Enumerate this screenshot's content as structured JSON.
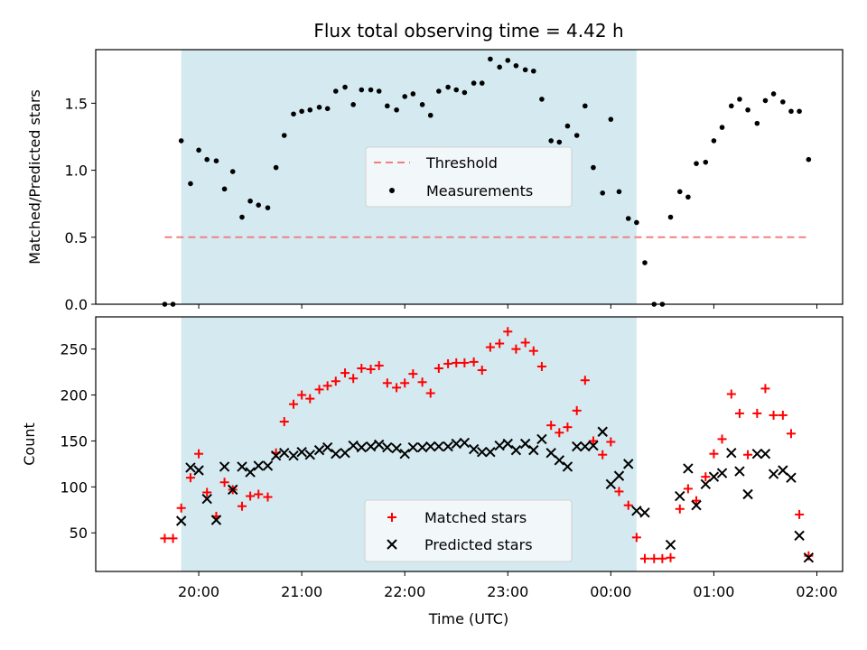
{
  "chart_data": [
    {
      "type": "scatter",
      "title": "Flux total observing time = 4.42 h",
      "ylabel": "Matched/Predicted stars",
      "ylim": [
        0,
        1.9
      ],
      "yticks": [
        0.0,
        0.5,
        1.0,
        1.5
      ],
      "ytick_labels": [
        "0.0",
        "0.5",
        "1.0",
        "1.5"
      ],
      "shaded_span": {
        "start": 19.83,
        "end": 24.25,
        "color": "#d4eaf0"
      },
      "threshold": {
        "name": "Threshold",
        "value": 0.5,
        "x_start": 19.67,
        "x_end": 25.92,
        "color": "#f08080"
      },
      "series": [
        {
          "name": "Measurements",
          "color": "#000000",
          "marker": "dot",
          "points": [
            [
              19.67,
              0.0
            ],
            [
              19.75,
              0.0
            ],
            [
              19.83,
              1.22
            ],
            [
              19.92,
              0.9
            ],
            [
              20.0,
              1.15
            ],
            [
              20.08,
              1.08
            ],
            [
              20.17,
              1.07
            ],
            [
              20.25,
              0.86
            ],
            [
              20.33,
              0.99
            ],
            [
              20.42,
              0.65
            ],
            [
              20.5,
              0.77
            ],
            [
              20.58,
              0.74
            ],
            [
              20.67,
              0.72
            ],
            [
              20.75,
              1.02
            ],
            [
              20.83,
              1.26
            ],
            [
              20.92,
              1.42
            ],
            [
              21.0,
              1.44
            ],
            [
              21.08,
              1.45
            ],
            [
              21.17,
              1.47
            ],
            [
              21.25,
              1.46
            ],
            [
              21.33,
              1.59
            ],
            [
              21.42,
              1.62
            ],
            [
              21.5,
              1.49
            ],
            [
              21.58,
              1.6
            ],
            [
              21.67,
              1.6
            ],
            [
              21.75,
              1.59
            ],
            [
              21.83,
              1.48
            ],
            [
              21.92,
              1.45
            ],
            [
              22.0,
              1.55
            ],
            [
              22.08,
              1.57
            ],
            [
              22.17,
              1.49
            ],
            [
              22.25,
              1.41
            ],
            [
              22.33,
              1.59
            ],
            [
              22.42,
              1.62
            ],
            [
              22.5,
              1.6
            ],
            [
              22.58,
              1.58
            ],
            [
              22.67,
              1.65
            ],
            [
              22.75,
              1.65
            ],
            [
              22.83,
              1.83
            ],
            [
              22.92,
              1.77
            ],
            [
              23.0,
              1.82
            ],
            [
              23.08,
              1.78
            ],
            [
              23.17,
              1.75
            ],
            [
              23.25,
              1.74
            ],
            [
              23.33,
              1.53
            ],
            [
              23.42,
              1.22
            ],
            [
              23.5,
              1.21
            ],
            [
              23.58,
              1.33
            ],
            [
              23.67,
              1.26
            ],
            [
              23.75,
              1.48
            ],
            [
              23.83,
              1.02
            ],
            [
              23.92,
              0.83
            ],
            [
              24.0,
              1.38
            ],
            [
              24.08,
              0.84
            ],
            [
              24.17,
              0.64
            ],
            [
              24.25,
              0.61
            ],
            [
              24.33,
              0.31
            ],
            [
              24.42,
              0.0
            ],
            [
              24.5,
              0.0
            ],
            [
              24.58,
              0.65
            ],
            [
              24.67,
              0.84
            ],
            [
              24.75,
              0.8
            ],
            [
              24.83,
              1.05
            ],
            [
              24.92,
              1.06
            ],
            [
              25.0,
              1.22
            ],
            [
              25.08,
              1.32
            ],
            [
              25.17,
              1.48
            ],
            [
              25.25,
              1.53
            ],
            [
              25.33,
              1.45
            ],
            [
              25.42,
              1.35
            ],
            [
              25.5,
              1.52
            ],
            [
              25.58,
              1.57
            ],
            [
              25.67,
              1.51
            ],
            [
              25.75,
              1.44
            ],
            [
              25.83,
              1.44
            ],
            [
              25.92,
              1.08
            ]
          ]
        }
      ],
      "legend": {
        "position": "center-right",
        "entries": [
          "Threshold",
          "Measurements"
        ]
      }
    },
    {
      "type": "scatter",
      "xlabel": "Time (UTC)",
      "ylabel": "Count",
      "ylim": [
        8,
        285
      ],
      "xlim": [
        19.0,
        26.25
      ],
      "xticks": [
        20,
        21,
        22,
        23,
        24,
        25,
        26
      ],
      "xtick_labels": [
        "20:00",
        "21:00",
        "22:00",
        "23:00",
        "00:00",
        "01:00",
        "02:00"
      ],
      "yticks": [
        50,
        100,
        150,
        200,
        250
      ],
      "ytick_labels": [
        "50",
        "100",
        "150",
        "200",
        "250"
      ],
      "shaded_span": {
        "start": 19.83,
        "end": 24.25,
        "color": "#d4eaf0"
      },
      "series": [
        {
          "name": "Matched stars",
          "color": "#ff0000",
          "marker": "plus",
          "points": [
            [
              19.67,
              44
            ],
            [
              19.75,
              44
            ],
            [
              19.83,
              77
            ],
            [
              19.92,
              110
            ],
            [
              20.0,
              136
            ],
            [
              20.08,
              94
            ],
            [
              20.17,
              68
            ],
            [
              20.25,
              105
            ],
            [
              20.33,
              97
            ],
            [
              20.42,
              79
            ],
            [
              20.5,
              90
            ],
            [
              20.58,
              92
            ],
            [
              20.67,
              89
            ],
            [
              20.75,
              137
            ],
            [
              20.83,
              171
            ],
            [
              20.92,
              190
            ],
            [
              21.0,
              200
            ],
            [
              21.08,
              196
            ],
            [
              21.17,
              206
            ],
            [
              21.25,
              210
            ],
            [
              21.33,
              215
            ],
            [
              21.42,
              224
            ],
            [
              21.5,
              218
            ],
            [
              21.58,
              229
            ],
            [
              21.67,
              228
            ],
            [
              21.75,
              232
            ],
            [
              21.83,
              213
            ],
            [
              21.92,
              208
            ],
            [
              22.0,
              213
            ],
            [
              22.08,
              223
            ],
            [
              22.17,
              214
            ],
            [
              22.25,
              202
            ],
            [
              22.33,
              229
            ],
            [
              22.42,
              234
            ],
            [
              22.5,
              235
            ],
            [
              22.58,
              235
            ],
            [
              22.67,
              236
            ],
            [
              22.75,
              227
            ],
            [
              22.83,
              252
            ],
            [
              22.92,
              256
            ],
            [
              23.0,
              269
            ],
            [
              23.08,
              250
            ],
            [
              23.17,
              257
            ],
            [
              23.25,
              248
            ],
            [
              23.33,
              231
            ],
            [
              23.42,
              167
            ],
            [
              23.5,
              159
            ],
            [
              23.58,
              165
            ],
            [
              23.67,
              183
            ],
            [
              23.75,
              216
            ],
            [
              23.83,
              150
            ],
            [
              23.92,
              135
            ],
            [
              24.0,
              149
            ],
            [
              24.08,
              95
            ],
            [
              24.17,
              80
            ],
            [
              24.25,
              45
            ],
            [
              24.33,
              22
            ],
            [
              24.42,
              22
            ],
            [
              24.5,
              22
            ],
            [
              24.58,
              23
            ],
            [
              24.67,
              76
            ],
            [
              24.75,
              98
            ],
            [
              24.83,
              85
            ],
            [
              24.92,
              111
            ],
            [
              25.0,
              136
            ],
            [
              25.08,
              152
            ],
            [
              25.17,
              201
            ],
            [
              25.25,
              180
            ],
            [
              25.33,
              135
            ],
            [
              25.42,
              180
            ],
            [
              25.5,
              207
            ],
            [
              25.58,
              178
            ],
            [
              25.67,
              178
            ],
            [
              25.75,
              158
            ],
            [
              25.83,
              70
            ],
            [
              25.92,
              25
            ]
          ]
        },
        {
          "name": "Predicted stars",
          "color": "#000000",
          "marker": "x",
          "points": [
            [
              19.83,
              63
            ],
            [
              19.92,
              121
            ],
            [
              20.0,
              118
            ],
            [
              20.08,
              87
            ],
            [
              20.17,
              64
            ],
            [
              20.25,
              122
            ],
            [
              20.33,
              97
            ],
            [
              20.42,
              122
            ],
            [
              20.5,
              116
            ],
            [
              20.58,
              123
            ],
            [
              20.67,
              123
            ],
            [
              20.75,
              134
            ],
            [
              20.83,
              137
            ],
            [
              20.92,
              134
            ],
            [
              21.0,
              138
            ],
            [
              21.08,
              135
            ],
            [
              21.17,
              140
            ],
            [
              21.25,
              143
            ],
            [
              21.33,
              136
            ],
            [
              21.42,
              137
            ],
            [
              21.5,
              145
            ],
            [
              21.58,
              143
            ],
            [
              21.67,
              144
            ],
            [
              21.75,
              146
            ],
            [
              21.83,
              143
            ],
            [
              21.92,
              142
            ],
            [
              22.0,
              136
            ],
            [
              22.08,
              143
            ],
            [
              22.17,
              143
            ],
            [
              22.25,
              144
            ],
            [
              22.33,
              144
            ],
            [
              22.42,
              144
            ],
            [
              22.5,
              147
            ],
            [
              22.58,
              148
            ],
            [
              22.67,
              141
            ],
            [
              22.75,
              138
            ],
            [
              22.83,
              138
            ],
            [
              22.92,
              145
            ],
            [
              23.0,
              147
            ],
            [
              23.08,
              140
            ],
            [
              23.17,
              147
            ],
            [
              23.25,
              140
            ],
            [
              23.33,
              152
            ],
            [
              23.42,
              137
            ],
            [
              23.5,
              129
            ],
            [
              23.58,
              122
            ],
            [
              23.67,
              144
            ],
            [
              23.75,
              144
            ],
            [
              23.83,
              145
            ],
            [
              23.92,
              160
            ],
            [
              24.0,
              103
            ],
            [
              24.08,
              112
            ],
            [
              24.17,
              125
            ],
            [
              24.25,
              74
            ],
            [
              24.33,
              72
            ],
            [
              24.58,
              37
            ],
            [
              24.67,
              90
            ],
            [
              24.75,
              120
            ],
            [
              24.83,
              80
            ],
            [
              24.92,
              103
            ],
            [
              25.0,
              111
            ],
            [
              25.08,
              115
            ],
            [
              25.17,
              137
            ],
            [
              25.25,
              117
            ],
            [
              25.33,
              92
            ],
            [
              25.42,
              136
            ],
            [
              25.5,
              136
            ],
            [
              25.58,
              114
            ],
            [
              25.67,
              118
            ],
            [
              25.75,
              110
            ],
            [
              25.83,
              47
            ],
            [
              25.92,
              23
            ]
          ]
        }
      ],
      "legend": {
        "position": "lower-center",
        "entries": [
          "Matched stars",
          "Predicted stars"
        ]
      }
    }
  ]
}
